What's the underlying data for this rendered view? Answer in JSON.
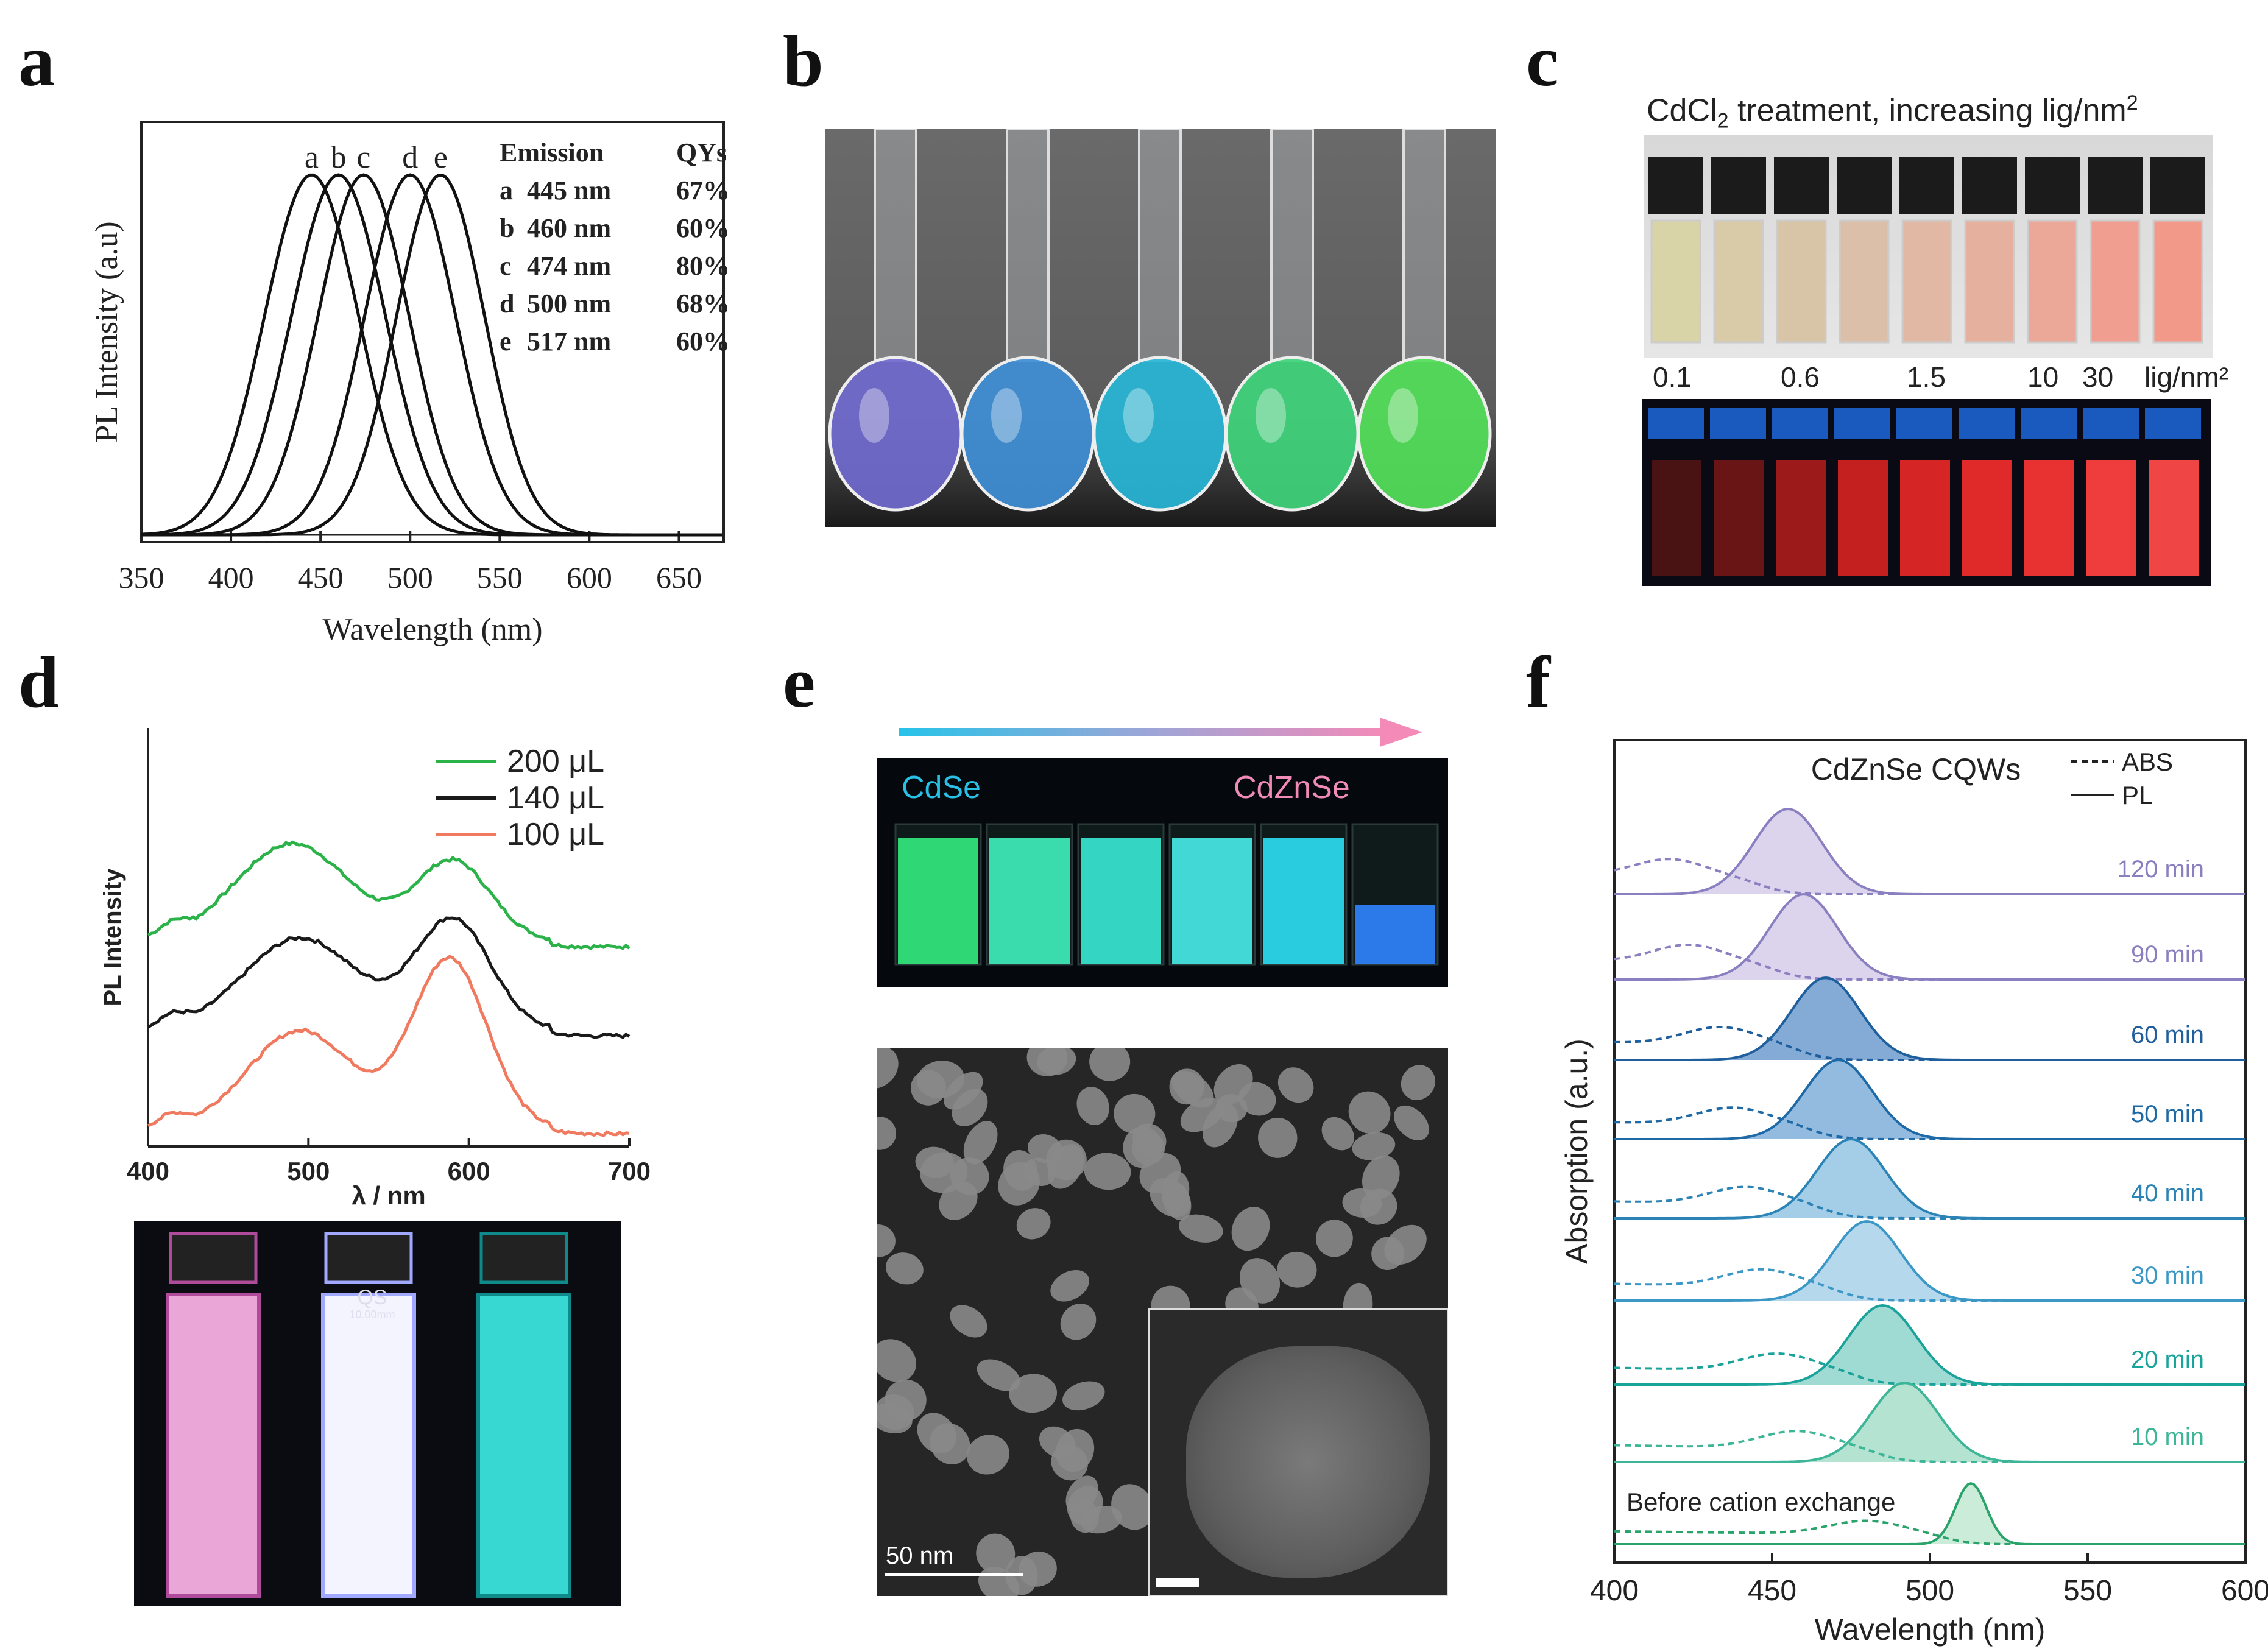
{
  "panel_labels": {
    "a": "a",
    "b": "b",
    "c": "c",
    "d": "d",
    "e": "e",
    "f": "f"
  },
  "chart_data": [
    {
      "id": "a",
      "type": "line",
      "title": "",
      "xlabel": "Wavelength (nm)",
      "ylabel": "PL Intensity (a.u)",
      "xlim": [
        350,
        675
      ],
      "ylim": [
        0,
        1.15
      ],
      "xticks": [
        "350",
        "400",
        "450",
        "500",
        "550",
        "600",
        "650"
      ],
      "series": [
        {
          "name": "a",
          "peak": 445,
          "fwhm": 62
        },
        {
          "name": "b",
          "peak": 460,
          "fwhm": 62
        },
        {
          "name": "c",
          "peak": 474,
          "fwhm": 60
        },
        {
          "name": "d",
          "peak": 500,
          "fwhm": 60
        },
        {
          "name": "e",
          "peak": 517,
          "fwhm": 58
        }
      ],
      "table": {
        "header": [
          "Emission",
          "QYs"
        ],
        "rows": [
          [
            "a",
            "445 nm",
            "67%"
          ],
          [
            "b",
            "460 nm",
            "60%"
          ],
          [
            "c",
            "474 nm",
            "80%"
          ],
          [
            "d",
            "500 nm",
            "68%"
          ],
          [
            "e",
            "517 nm",
            "60%"
          ]
        ]
      }
    },
    {
      "id": "d",
      "type": "line",
      "xlabel": "λ / nm",
      "ylabel": "PL Intensity",
      "xlim": [
        400,
        700
      ],
      "xticks": [
        "400",
        "500",
        "600",
        "700"
      ],
      "series": [
        {
          "name": "200 μL",
          "color": "#2bb34a",
          "offset": 1.05,
          "peaks": [
            [
              490,
              0.55,
              38
            ],
            [
              590,
              0.45,
              25
            ]
          ]
        },
        {
          "name": "140 μL",
          "color": "#1a1a1a",
          "offset": 0.55,
          "peaks": [
            [
              495,
              0.52,
              38
            ],
            [
              590,
              0.62,
              25
            ]
          ]
        },
        {
          "name": "100 μL",
          "color": "#f07a60",
          "offset": 0.0,
          "peaks": [
            [
              495,
              0.55,
              35
            ],
            [
              588,
              0.95,
              25
            ]
          ]
        }
      ]
    },
    {
      "id": "f",
      "type": "line",
      "title": "CdZnSe CQWs",
      "xlabel": "Wavelength (nm)",
      "ylabel": "Absorption (a.u.)",
      "xlim": [
        400,
        600
      ],
      "xticks": [
        "400",
        "450",
        "500",
        "550",
        "600"
      ],
      "legend": [
        "ABS",
        "PL"
      ],
      "series": [
        {
          "name": "120 min",
          "pl_peak": 455,
          "abs_peak": 418,
          "color": "#8a7fc0",
          "fill": "#cfc6e6"
        },
        {
          "name": "90 min",
          "pl_peak": 460,
          "abs_peak": 424,
          "color": "#8a7fc0",
          "fill": "#cfc6e6"
        },
        {
          "name": "60 min",
          "pl_peak": 467,
          "abs_peak": 434,
          "color": "#1f5f9e",
          "fill": "#5b8fc7"
        },
        {
          "name": "50 min",
          "pl_peak": 471,
          "abs_peak": 438,
          "color": "#1e6aa7",
          "fill": "#6ea4d4"
        },
        {
          "name": "40 min",
          "pl_peak": 475,
          "abs_peak": 442,
          "color": "#2c83b6",
          "fill": "#86bde0"
        },
        {
          "name": "30 min",
          "pl_peak": 480,
          "abs_peak": 447,
          "color": "#3b98c6",
          "fill": "#9ccbe7"
        },
        {
          "name": "20 min",
          "pl_peak": 485,
          "abs_peak": 452,
          "color": "#19a39b",
          "fill": "#7fcfc4"
        },
        {
          "name": "10 min",
          "pl_peak": 492,
          "abs_peak": 458,
          "color": "#3db597",
          "fill": "#9bd9c2"
        },
        {
          "name": "Before cation exchange",
          "pl_peak": 513,
          "abs_peak": 480,
          "color": "#2aa36b",
          "fill": "#b8e6cc"
        }
      ]
    }
  ],
  "panel_c": {
    "caption_main": "CdCl",
    "caption_sub": "2",
    "caption_rest": " treatment, increasing lig/nm",
    "caption_sup": "2",
    "ticks": [
      "0.1",
      "0.6",
      "1.5",
      "10",
      "30"
    ],
    "unit": "lig/nm²"
  },
  "panel_e": {
    "left_label": "CdSe",
    "right_label": "CdZnSe",
    "scale_label": "50 nm"
  },
  "panel_d": {
    "cuvette_label": "QS",
    "cuvette_sub": "10.00mm"
  },
  "colors": {
    "flask_colors": [
      "#6f6acd",
      "#3f8fd6",
      "#27b6d6",
      "#3fd47a",
      "#52e05a"
    ],
    "vial_colors": [
      "#33e27a",
      "#3de6b4",
      "#37dfcb",
      "#45e3df",
      "#2bd6ea",
      "#2e7ff5"
    ],
    "cuvette_c_colors": [
      "#4a1313",
      "#6a1515",
      "#9c1a1a",
      "#c52020",
      "#d52525",
      "#e02a2a",
      "#e83131",
      "#ef3d3d",
      "#f04545"
    ]
  }
}
